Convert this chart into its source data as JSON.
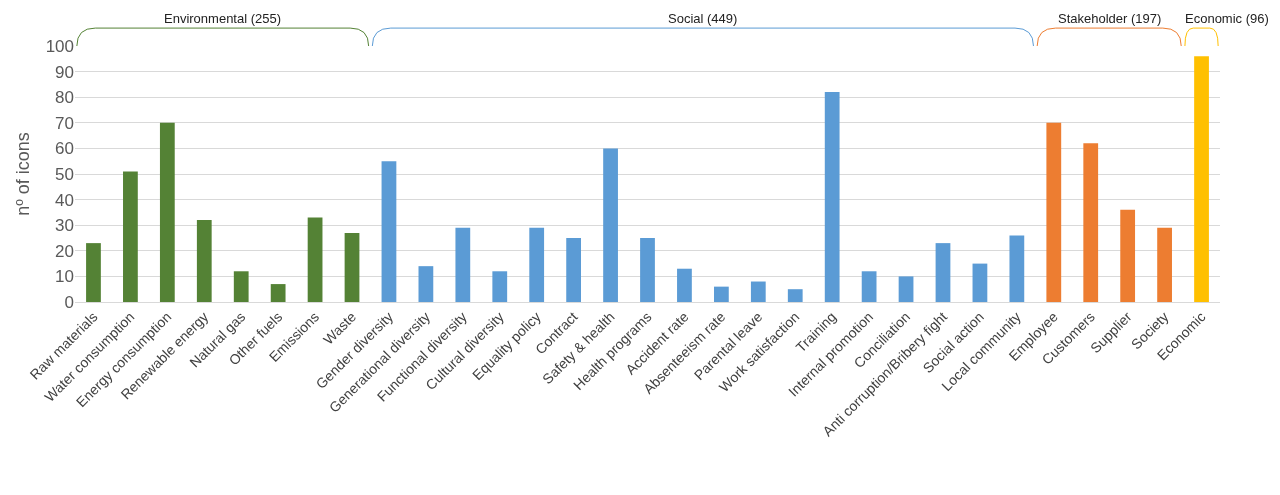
{
  "chart_data": {
    "type": "bar",
    "ylabel": "nº of icons",
    "categories": [
      "Raw materials",
      "Water consumption",
      "Energy consumption",
      "Renewable energy",
      "Natural gas",
      "Other fuels",
      "Emissions",
      "Waste",
      "Gender diversity",
      "Generational diversity",
      "Functional diversity",
      "Cultural diversity",
      "Equality policy",
      "Contract",
      "Safety & health",
      "Health programs",
      "Accident rate",
      "Absenteeism rate",
      "Parental leave",
      "Work satisfaction",
      "Training",
      "Internal promotion",
      "Conciliation",
      "Anti corruption/Bribery fight",
      "Social action",
      "Local community",
      "Employee",
      "Customers",
      "Supplier",
      "Society",
      "Economic"
    ],
    "series": [
      {
        "color": "#548235",
        "values": [
          23,
          51,
          70,
          32,
          12,
          7,
          33,
          27,
          null,
          null,
          null,
          null,
          null,
          null,
          null,
          null,
          null,
          null,
          null,
          null,
          null,
          null,
          null,
          null,
          null,
          null,
          null,
          null,
          null,
          null,
          null
        ]
      },
      {
        "color": "#5b9bd5",
        "values": [
          null,
          null,
          null,
          null,
          null,
          null,
          null,
          null,
          55,
          14,
          29,
          12,
          29,
          25,
          60,
          25,
          13,
          6,
          8,
          5,
          82,
          12,
          10,
          23,
          15,
          26,
          null,
          null,
          null,
          null,
          null
        ]
      },
      {
        "color": "#ed7d31",
        "values": [
          null,
          null,
          null,
          null,
          null,
          null,
          null,
          null,
          null,
          null,
          null,
          null,
          null,
          null,
          null,
          null,
          null,
          null,
          null,
          null,
          null,
          null,
          null,
          null,
          null,
          null,
          70,
          62,
          36,
          29,
          null
        ]
      },
      {
        "color": "#ffc000",
        "values": [
          null,
          null,
          null,
          null,
          null,
          null,
          null,
          null,
          null,
          null,
          null,
          null,
          null,
          null,
          null,
          null,
          null,
          null,
          null,
          null,
          null,
          null,
          null,
          null,
          null,
          null,
          null,
          null,
          null,
          null,
          96
        ]
      }
    ],
    "annotations": [
      "Environmental (255)",
      "Social (449)",
      "Stakeholder (197)",
      "Economic (96)"
    ],
    "ylim": [
      0,
      100
    ],
    "yticks": [
      0,
      10,
      20,
      30,
      40,
      50,
      60,
      70,
      80,
      90,
      100
    ],
    "grid": "y"
  }
}
